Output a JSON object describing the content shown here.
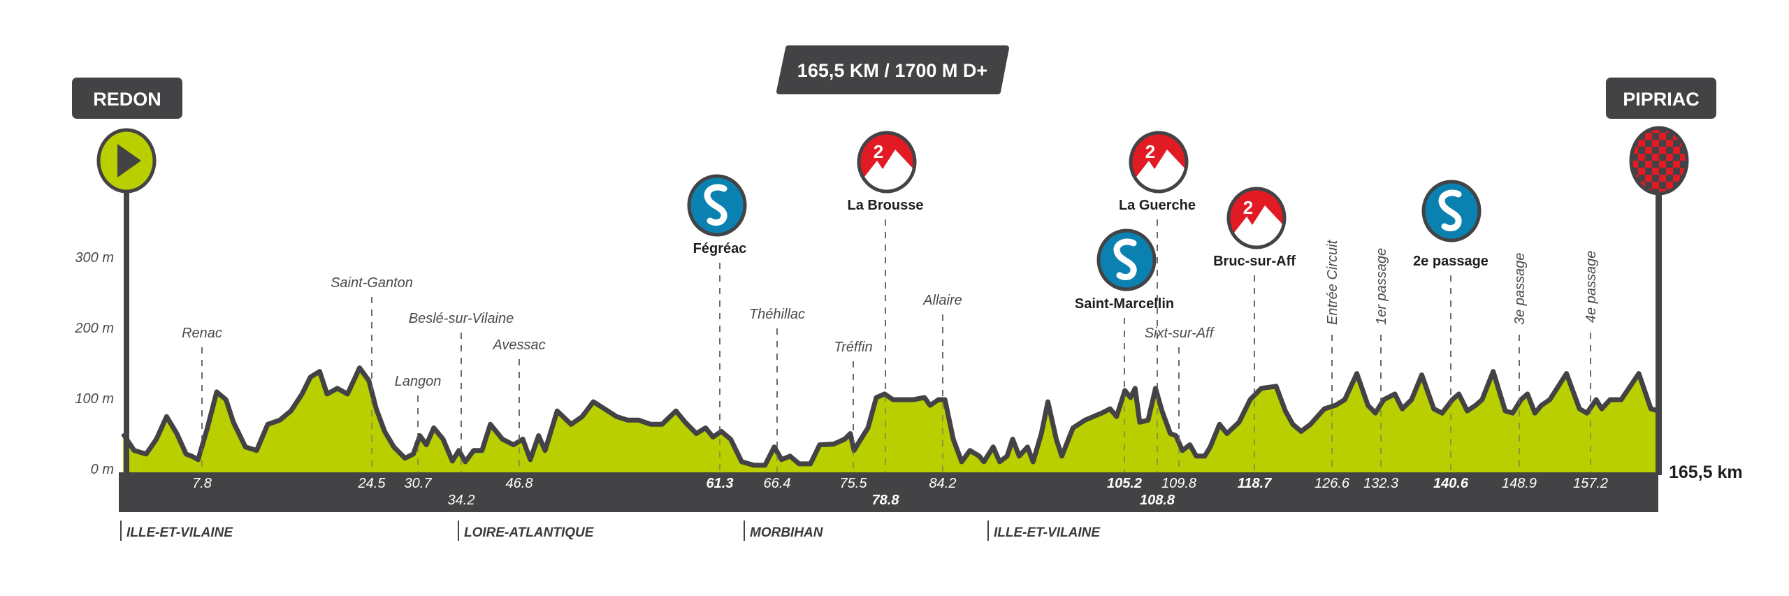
{
  "header": {
    "distance_elevation": "165,5 KM / 1700 M D+"
  },
  "start": {
    "town": "REDON",
    "icon": "play-start-icon"
  },
  "finish": {
    "town": "PIPRIAC",
    "icon": "checkered-flag-icon"
  },
  "colors": {
    "profile_fill": "#b9cf00",
    "profile_stroke": "#434244",
    "dark": "#434244",
    "kom_red": "#e11a24",
    "sprint_blue": "#0b81b1"
  },
  "regions": [
    "ILLE-ET-VILAINE",
    "LOIRE-ATLANTIQUE",
    "MORBIHAN",
    "ILLE-ET-VILAINE"
  ],
  "chart_data": {
    "type": "area",
    "title": "",
    "xlabel": "",
    "ylabel": "",
    "xlim": [
      0,
      165.5
    ],
    "ylim": [
      0,
      300
    ],
    "total_label": "165,5 km",
    "y_ticks": [
      {
        "value": 0,
        "label": "0 m"
      },
      {
        "value": 100,
        "label": "100 m"
      },
      {
        "value": 200,
        "label": "200 m"
      },
      {
        "value": 300,
        "label": "300 m"
      }
    ],
    "grid": false,
    "profile": [
      [
        0,
        53
      ],
      [
        1.2,
        29
      ],
      [
        2.5,
        24
      ],
      [
        3.6,
        45
      ],
      [
        4.7,
        77
      ],
      [
        5.8,
        53
      ],
      [
        6.8,
        24
      ],
      [
        7.4,
        21
      ],
      [
        8.1,
        16
      ],
      [
        9.1,
        61
      ],
      [
        10.1,
        112
      ],
      [
        11.1,
        101
      ],
      [
        11.9,
        69
      ],
      [
        13.2,
        34
      ],
      [
        14.4,
        29
      ],
      [
        15.6,
        66
      ],
      [
        16.9,
        72
      ],
      [
        18.1,
        85
      ],
      [
        19.3,
        109
      ],
      [
        20.2,
        133
      ],
      [
        21.2,
        141
      ],
      [
        22.0,
        109
      ],
      [
        23.1,
        117
      ],
      [
        24.2,
        109
      ],
      [
        25.5,
        146
      ],
      [
        26.5,
        128
      ],
      [
        27.3,
        88
      ],
      [
        28.2,
        56
      ],
      [
        29.2,
        34
      ],
      [
        30.4,
        18
      ],
      [
        31.3,
        24
      ],
      [
        32.0,
        50
      ],
      [
        32.7,
        37
      ],
      [
        33.5,
        61
      ],
      [
        34.5,
        45
      ],
      [
        35.5,
        14
      ],
      [
        36.2,
        29
      ],
      [
        36.9,
        13
      ],
      [
        37.8,
        29
      ],
      [
        38.7,
        29
      ],
      [
        39.6,
        66
      ],
      [
        40.9,
        45
      ],
      [
        42.1,
        37
      ],
      [
        43.1,
        45
      ],
      [
        43.9,
        16
      ],
      [
        44.8,
        50
      ],
      [
        45.5,
        29
      ],
      [
        46.8,
        85
      ],
      [
        48.3,
        66
      ],
      [
        49.5,
        77
      ],
      [
        50.7,
        98
      ],
      [
        51.9,
        88
      ],
      [
        53.2,
        77
      ],
      [
        54.4,
        72
      ],
      [
        55.6,
        72
      ],
      [
        56.9,
        66
      ],
      [
        58.1,
        66
      ],
      [
        59.6,
        85
      ],
      [
        60.6,
        69
      ],
      [
        61.8,
        53
      ],
      [
        62.8,
        61
      ],
      [
        63.6,
        48
      ],
      [
        64.5,
        56
      ],
      [
        65.5,
        45
      ],
      [
        66.7,
        13
      ],
      [
        68.0,
        8
      ],
      [
        69.2,
        8
      ],
      [
        70.2,
        34
      ],
      [
        71.0,
        16
      ],
      [
        71.9,
        21
      ],
      [
        72.9,
        10
      ],
      [
        74.1,
        10
      ],
      [
        75.1,
        37
      ],
      [
        76.6,
        38
      ],
      [
        77.8,
        45
      ],
      [
        78.4,
        53
      ],
      [
        78.8,
        29
      ],
      [
        79.3,
        40
      ],
      [
        80.3,
        61
      ],
      [
        81.2,
        104
      ],
      [
        82.1,
        109
      ],
      [
        83.0,
        101
      ],
      [
        84.0,
        101
      ],
      [
        85.2,
        101
      ],
      [
        86.4,
        104
      ],
      [
        87.0,
        93
      ],
      [
        87.9,
        101
      ],
      [
        88.6,
        101
      ],
      [
        89.5,
        45
      ],
      [
        90.4,
        13
      ],
      [
        91.3,
        29
      ],
      [
        92.3,
        21
      ],
      [
        92.8,
        13
      ],
      [
        93.8,
        34
      ],
      [
        94.5,
        13
      ],
      [
        95.3,
        21
      ],
      [
        95.9,
        45
      ],
      [
        96.6,
        21
      ],
      [
        97.5,
        34
      ],
      [
        98.1,
        13
      ],
      [
        99.0,
        53
      ],
      [
        99.7,
        98
      ],
      [
        100.6,
        45
      ],
      [
        101.2,
        21
      ],
      [
        102.4,
        61
      ],
      [
        103.7,
        72
      ],
      [
        104.6,
        77
      ],
      [
        105.5,
        82
      ],
      [
        106.4,
        88
      ],
      [
        107.1,
        77
      ],
      [
        108.0,
        114
      ],
      [
        108.6,
        104
      ],
      [
        109.1,
        117
      ],
      [
        109.6,
        69
      ],
      [
        110.5,
        72
      ],
      [
        111.3,
        117
      ],
      [
        112.0,
        85
      ],
      [
        112.9,
        53
      ],
      [
        113.5,
        50
      ],
      [
        114.2,
        29
      ],
      [
        115.0,
        37
      ],
      [
        115.7,
        21
      ],
      [
        116.6,
        21
      ],
      [
        117.2,
        34
      ],
      [
        118.2,
        66
      ],
      [
        119.0,
        53
      ],
      [
        120.3,
        69
      ],
      [
        121.5,
        101
      ],
      [
        122.7,
        117
      ],
      [
        124.3,
        120
      ],
      [
        125.3,
        85
      ],
      [
        126.1,
        66
      ],
      [
        127.0,
        56
      ],
      [
        128.0,
        66
      ],
      [
        129.5,
        88
      ],
      [
        130.7,
        93
      ],
      [
        131.7,
        101
      ],
      [
        133.0,
        138
      ],
      [
        134.2,
        93
      ],
      [
        135.0,
        82
      ],
      [
        135.9,
        101
      ],
      [
        137.1,
        109
      ],
      [
        137.9,
        88
      ],
      [
        138.9,
        101
      ],
      [
        140.0,
        136
      ],
      [
        141.3,
        88
      ],
      [
        142.2,
        82
      ],
      [
        143.3,
        101
      ],
      [
        144.0,
        109
      ],
      [
        144.9,
        85
      ],
      [
        145.8,
        93
      ],
      [
        146.5,
        101
      ],
      [
        147.7,
        141
      ],
      [
        149.0,
        85
      ],
      [
        149.8,
        82
      ],
      [
        150.7,
        101
      ],
      [
        151.4,
        109
      ],
      [
        152.2,
        82
      ],
      [
        152.9,
        93
      ],
      [
        153.8,
        101
      ],
      [
        155.6,
        138
      ],
      [
        157.0,
        88
      ],
      [
        157.8,
        82
      ],
      [
        158.8,
        101
      ],
      [
        159.4,
        88
      ],
      [
        160.3,
        101
      ],
      [
        161.5,
        101
      ],
      [
        163.4,
        138
      ],
      [
        164.7,
        88
      ],
      [
        165.5,
        85
      ]
    ],
    "markers": [
      {
        "name": "Renac",
        "km": 7.8,
        "km_label": "7.8",
        "type": "town"
      },
      {
        "name": "Saint-Ganton",
        "km": 24.5,
        "km_label": "24.5",
        "type": "town"
      },
      {
        "name": "Langon",
        "km": 30.7,
        "km_label": "30.7",
        "type": "town"
      },
      {
        "name": "Beslé-sur-Vilaine",
        "km": 34.2,
        "km_label": "34.2",
        "type": "town"
      },
      {
        "name": "Avessac",
        "km": 46.8,
        "km_label": "46.8",
        "type": "town"
      },
      {
        "name": "Fégréac",
        "km": 61.3,
        "km_label": "61.3",
        "type": "sprint",
        "icon": "sprint-icon"
      },
      {
        "name": "Théhillac",
        "km": 66.4,
        "km_label": "66.4",
        "type": "town"
      },
      {
        "name": "Tréffin",
        "km": 75.5,
        "km_label": "75.5",
        "type": "town"
      },
      {
        "name": "La Brousse",
        "km": 78.8,
        "km_label": "78.8",
        "type": "kom",
        "category": "2",
        "icon": "kom-climb-icon"
      },
      {
        "name": "Allaire",
        "km": 84.2,
        "km_label": "84.2",
        "type": "town"
      },
      {
        "name": "Saint-Marcellin",
        "km": 105.2,
        "km_label": "105.2",
        "type": "sprint",
        "icon": "sprint-icon"
      },
      {
        "name": "La Guerche",
        "km": 108.8,
        "km_label": "108.8",
        "type": "kom",
        "category": "2",
        "icon": "kom-climb-icon"
      },
      {
        "name": "Sixt-sur-Aff",
        "km": 109.8,
        "km_label": "109.8",
        "type": "town"
      },
      {
        "name": "Bruc-sur-Aff",
        "km": 118.7,
        "km_label": "118.7",
        "type": "kom",
        "category": "2",
        "icon": "kom-climb-icon"
      },
      {
        "name": "Entrée Circuit",
        "km": 126.6,
        "km_label": "126.6",
        "type": "circuit"
      },
      {
        "name": "1er passage",
        "km": 132.3,
        "km_label": "132.3",
        "type": "circuit"
      },
      {
        "name": "2e passage",
        "km": 140.6,
        "km_label": "140.6",
        "type": "sprint",
        "icon": "sprint-icon"
      },
      {
        "name": "3e passage",
        "km": 148.9,
        "km_label": "148.9",
        "type": "circuit"
      },
      {
        "name": "4e passage",
        "km": 157.2,
        "km_label": "157.2",
        "type": "circuit"
      }
    ]
  }
}
